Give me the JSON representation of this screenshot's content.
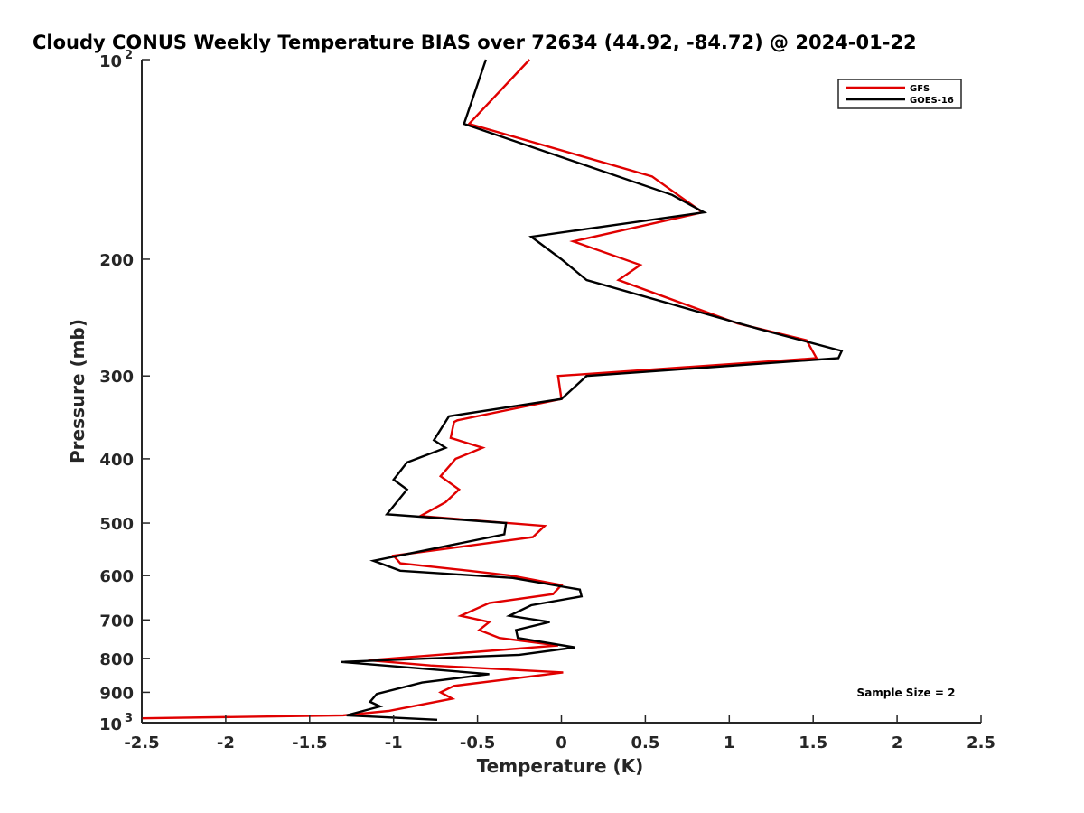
{
  "chart_data": {
    "type": "line",
    "title": "Cloudy CONUS Weekly Temperature BIAS over 72634 (44.92, -84.72) @ 2024-01-22",
    "xlabel": "Temperature (K)",
    "ylabel": "Pressure (mb)",
    "xlim": [
      -2.5,
      2.5
    ],
    "ylim": [
      1000,
      100
    ],
    "y_scale": "log",
    "y_reversed": true,
    "xticks": [
      "-2.5",
      "-2",
      "-1.5",
      "-1",
      "-0.5",
      "0",
      "0.5",
      "1",
      "1.5",
      "2",
      "2.5"
    ],
    "xtick_values": [
      -2.5,
      -2,
      -1.5,
      -1,
      -0.5,
      0,
      0.5,
      1,
      1.5,
      2,
      2.5
    ],
    "yticks": [
      "200",
      "300",
      "400",
      "500",
      "600",
      "700",
      "800",
      "900"
    ],
    "ytick_values": [
      200,
      300,
      400,
      500,
      600,
      700,
      800,
      900
    ],
    "ytick_top": {
      "base": "10",
      "exp": "2",
      "value": 100
    },
    "ytick_bottom": {
      "base": "10",
      "exp": "3",
      "value": 1000
    },
    "legend_position": "top-right",
    "annotation": "Sample Size = 2",
    "grid": false,
    "series": [
      {
        "name": "GFS",
        "color": "#e00000",
        "points": [
          [
            -0.19,
            100
          ],
          [
            -0.55,
            125
          ],
          [
            0.54,
            150
          ],
          [
            0.84,
            170
          ],
          [
            0.07,
            188
          ],
          [
            0.47,
            204
          ],
          [
            0.34,
            215
          ],
          [
            1.05,
            250
          ],
          [
            1.46,
            265
          ],
          [
            1.52,
            282
          ],
          [
            -0.02,
            300
          ],
          [
            0.0,
            325
          ],
          [
            -0.62,
            350
          ],
          [
            -0.64,
            352
          ],
          [
            -0.66,
            372
          ],
          [
            -0.47,
            385
          ],
          [
            -0.63,
            400
          ],
          [
            -0.72,
            425
          ],
          [
            -0.61,
            445
          ],
          [
            -0.69,
            465
          ],
          [
            -0.84,
            488
          ],
          [
            -0.1,
            505
          ],
          [
            -0.17,
            525
          ],
          [
            -1.0,
            560
          ],
          [
            -0.96,
            575
          ],
          [
            -0.55,
            590
          ],
          [
            -0.3,
            600
          ],
          [
            0.0,
            620
          ],
          [
            -0.05,
            640
          ],
          [
            -0.43,
            660
          ],
          [
            -0.6,
            690
          ],
          [
            -0.43,
            705
          ],
          [
            -0.49,
            725
          ],
          [
            -0.37,
            745
          ],
          [
            -0.02,
            765
          ],
          [
            -1.15,
            805
          ],
          [
            -0.78,
            820
          ],
          [
            0.01,
            840
          ],
          [
            -0.64,
            880
          ],
          [
            -0.72,
            900
          ],
          [
            -0.65,
            920
          ],
          [
            -1.03,
            960
          ],
          [
            -1.3,
            975
          ],
          [
            -2.5,
            985
          ]
        ]
      },
      {
        "name": "GOES-16",
        "color": "#000000",
        "points": [
          [
            -0.45,
            100
          ],
          [
            -0.58,
            125
          ],
          [
            0.66,
            160
          ],
          [
            0.85,
            170
          ],
          [
            -0.18,
            185
          ],
          [
            0.0,
            200
          ],
          [
            0.15,
            215
          ],
          [
            1.18,
            255
          ],
          [
            1.67,
            275
          ],
          [
            1.65,
            282
          ],
          [
            0.15,
            300
          ],
          [
            0.0,
            325
          ],
          [
            -0.67,
            345
          ],
          [
            -0.76,
            375
          ],
          [
            -0.69,
            385
          ],
          [
            -0.92,
            405
          ],
          [
            -1.0,
            430
          ],
          [
            -0.92,
            445
          ],
          [
            -1.04,
            485
          ],
          [
            -0.33,
            500
          ],
          [
            -0.34,
            520
          ],
          [
            -1.12,
            570
          ],
          [
            -0.96,
            590
          ],
          [
            -0.29,
            605
          ],
          [
            0.11,
            630
          ],
          [
            0.12,
            645
          ],
          [
            -0.18,
            665
          ],
          [
            -0.31,
            690
          ],
          [
            -0.07,
            705
          ],
          [
            -0.27,
            725
          ],
          [
            -0.26,
            745
          ],
          [
            0.08,
            770
          ],
          [
            -0.25,
            790
          ],
          [
            -1.31,
            810
          ],
          [
            -0.43,
            845
          ],
          [
            -0.83,
            870
          ],
          [
            -1.1,
            905
          ],
          [
            -1.14,
            930
          ],
          [
            -1.08,
            945
          ],
          [
            -1.28,
            975
          ],
          [
            -0.74,
            990
          ]
        ]
      }
    ]
  }
}
